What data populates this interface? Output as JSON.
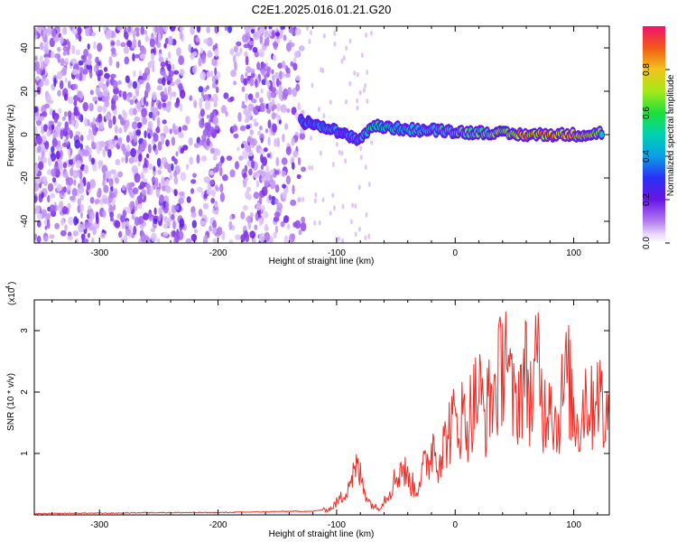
{
  "title": "C2E1.2025.016.01.21.G20",
  "top_panel": {
    "xlabel": "Height of straight line (km)",
    "ylabel": "Frequency (Hz)",
    "colorbar_label": "Normalized spectral amplitude"
  },
  "bottom_panel": {
    "xlabel": "Height of straight line (km)",
    "ylabel": "SNR (10 * v/v)",
    "y_multiplier": "(x10",
    "y_exponent": "4",
    "y_multiplier_close": ")"
  },
  "colors": {
    "snr_line": "#e8302a",
    "colormap": [
      "#ffffff",
      "#d8bff5",
      "#7a1fe6",
      "#2b2cf2",
      "#00bcd8",
      "#19e05a",
      "#9be81e",
      "#f2c21a",
      "#f25a18",
      "#f01070"
    ]
  },
  "chart_data": [
    {
      "type": "heatmap",
      "title": "C2E1.2025.016.01.21.G20",
      "xlabel": "Height of straight line (km)",
      "ylabel": "Frequency (Hz)",
      "xlim": [
        -355,
        130
      ],
      "ylim": [
        -50,
        50
      ],
      "xticks": [
        -300,
        -200,
        -100,
        0,
        100
      ],
      "yticks": [
        -40,
        -20,
        0,
        20,
        40
      ],
      "colorbar": {
        "label": "Normalized spectral amplitude",
        "range": [
          0.0,
          1.0
        ],
        "ticks": [
          0.0,
          0.2,
          0.4,
          0.6,
          0.8
        ]
      },
      "description_ridge": [
        {
          "x": -130,
          "y": 6,
          "amp": 0.35
        },
        {
          "x": -110,
          "y": 4,
          "amp": 0.45
        },
        {
          "x": -95,
          "y": 0,
          "amp": 0.4
        },
        {
          "x": -80,
          "y": -2,
          "amp": 0.45
        },
        {
          "x": -70,
          "y": 4,
          "amp": 0.55
        },
        {
          "x": -50,
          "y": 3,
          "amp": 0.5
        },
        {
          "x": -30,
          "y": 2,
          "amp": 0.5
        },
        {
          "x": -10,
          "y": 2,
          "amp": 0.55
        },
        {
          "x": 10,
          "y": 1,
          "amp": 0.65
        },
        {
          "x": 30,
          "y": 1,
          "amp": 0.65
        },
        {
          "x": 50,
          "y": 0,
          "amp": 0.85
        },
        {
          "x": 70,
          "y": 0,
          "amp": 0.9
        },
        {
          "x": 90,
          "y": 0,
          "amp": 0.9
        },
        {
          "x": 110,
          "y": 0,
          "amp": 0.8
        },
        {
          "x": 125,
          "y": 1,
          "amp": 0.6
        }
      ]
    },
    {
      "type": "line",
      "xlabel": "Height of straight line (km)",
      "ylabel": "SNR (10 * v/v)",
      "y_scale_note": "x10^4",
      "xlim": [
        -355,
        130
      ],
      "ylim": [
        0,
        3.5
      ],
      "xticks": [
        -300,
        -200,
        -100,
        0,
        100
      ],
      "yticks": [
        1,
        2,
        3
      ],
      "series": [
        {
          "color": "#e8302a",
          "x": [
            -355,
            -320,
            -290,
            -260,
            -230,
            -200,
            -170,
            -140,
            -120,
            -105,
            -95,
            -88,
            -82,
            -78,
            -72,
            -65,
            -58,
            -50,
            -45,
            -40,
            -33,
            -28,
            -22,
            -18,
            -15,
            -10,
            -5,
            0,
            5,
            10,
            15,
            20,
            25,
            30,
            35,
            40,
            42,
            45,
            50,
            55,
            60,
            65,
            70,
            75,
            80,
            85,
            90,
            95,
            100,
            105,
            110,
            115,
            120,
            125,
            130
          ],
          "y": [
            0.01,
            0.02,
            0.02,
            0.03,
            0.03,
            0.03,
            0.04,
            0.05,
            0.05,
            0.1,
            0.3,
            0.6,
            0.75,
            0.5,
            0.2,
            0.1,
            0.3,
            0.6,
            0.8,
            0.6,
            0.4,
            0.7,
            0.9,
            1.2,
            0.9,
            1.1,
            1.4,
            1.5,
            1.6,
            1.5,
            1.8,
            2.0,
            1.6,
            1.9,
            2.1,
            2.4,
            3.35,
            2.2,
            1.7,
            2.1,
            2.3,
            1.8,
            2.6,
            1.6,
            2.2,
            1.4,
            1.9,
            2.3,
            1.6,
            1.5,
            2.0,
            1.7,
            2.3,
            1.5,
            1.6
          ]
        }
      ]
    }
  ]
}
